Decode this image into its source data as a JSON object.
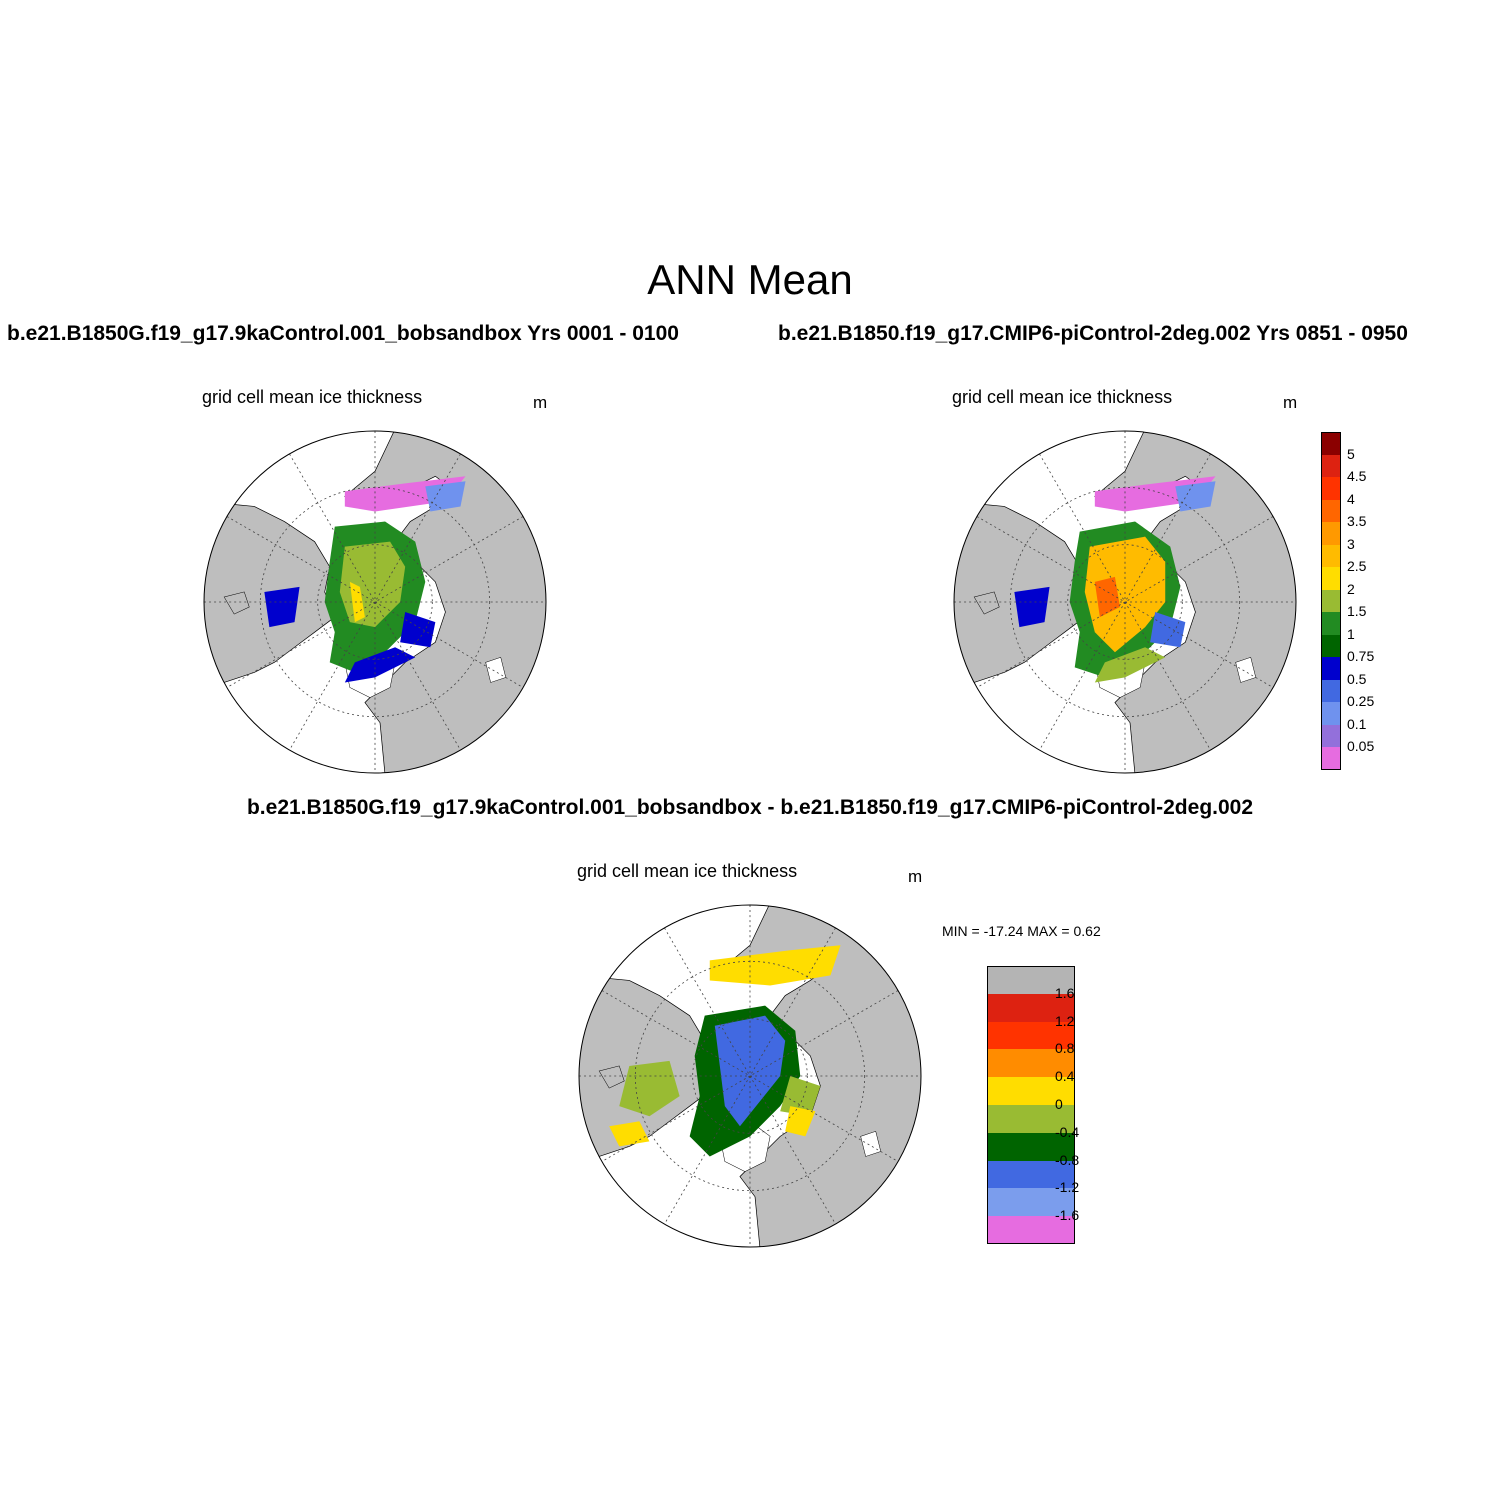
{
  "title": "ANN Mean",
  "panels": [
    {
      "case_title": "b.e21.B1850G.f19_g17.9kaControl.001_bobsandbox  Yrs 0001 - 0100",
      "label": "grid cell mean ice thickness",
      "units": "m"
    },
    {
      "case_title": "b.e21.B1850.f19_g17.CMIP6-piControl-2deg.002  Yrs 0851 - 0950",
      "label": "grid cell mean ice thickness",
      "units": "m"
    },
    {
      "case_title": "b.e21.B1850G.f19_g17.9kaControl.001_bobsandbox - b.e21.B1850.f19_g17.CMIP6-piControl-2deg.002",
      "label": "grid cell mean ice thickness",
      "units": "m",
      "minmax": "MIN = -17.24 MAX =   0.62"
    }
  ],
  "colorbar_top": {
    "labels": [
      "5",
      "4.5",
      "4",
      "3.5",
      "3",
      "2.5",
      "2",
      "1.5",
      "1",
      "0.75",
      "0.5",
      "0.25",
      "0.1",
      "0.05"
    ],
    "colors": [
      "#8b0000",
      "#dd2211",
      "#ff3300",
      "#ff6600",
      "#ff9900",
      "#ffbb00",
      "#ffdd00",
      "#99bb33",
      "#228b22",
      "#006400",
      "#0000cd",
      "#4169e1",
      "#6f92ee",
      "#9370db",
      "#e66ce0"
    ]
  },
  "colorbar_diff": {
    "labels": [
      "1.6",
      "1.2",
      "0.8",
      "0.4",
      "0",
      "-0.4",
      "-0.8",
      "-1.2",
      "-1.6"
    ],
    "colors": [
      "#b4b4b4",
      "#dd2211",
      "#ff3300",
      "#ff8c00",
      "#ffdd00",
      "#99bb33",
      "#006400",
      "#4169e1",
      "#7b9ded",
      "#e66ce0"
    ]
  },
  "colors": {
    "land": "#bebebe",
    "ocean": "#ffffff",
    "grid": "#444444"
  }
}
